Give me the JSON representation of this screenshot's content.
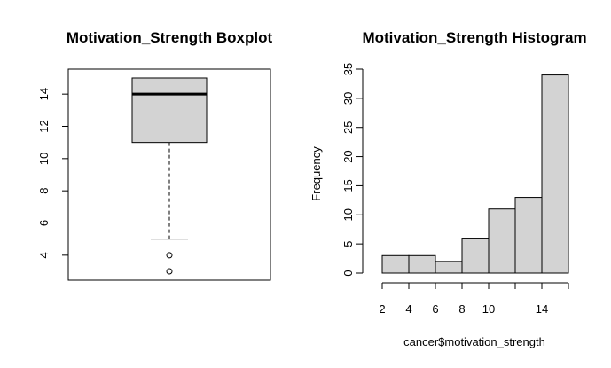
{
  "chart_data": [
    {
      "type": "boxplot",
      "title": "Motivation_Strength Boxplot",
      "ylim": [
        2.45,
        15.55
      ],
      "yticks": [
        4,
        6,
        8,
        10,
        12,
        14
      ],
      "box": {
        "q1": 11,
        "median": 14,
        "q3": 15,
        "whisker_low": 5,
        "whisker_high": 15
      },
      "outliers": [
        4,
        3
      ],
      "colors": {
        "box_fill": "#d3d3d3",
        "line": "#000000"
      }
    },
    {
      "type": "bar",
      "title": "Motivation_Strength Histogram",
      "xlabel": "cancer$motivation_strength",
      "ylabel": "Frequency",
      "xlim": [
        2,
        16
      ],
      "ylim": [
        0,
        35
      ],
      "xticks": [
        2,
        4,
        6,
        8,
        10,
        14
      ],
      "yticks": [
        0,
        5,
        10,
        15,
        20,
        25,
        30,
        35
      ],
      "bins": [
        {
          "from": 2,
          "to": 4,
          "count": 3
        },
        {
          "from": 4,
          "to": 6,
          "count": 3
        },
        {
          "from": 6,
          "to": 8,
          "count": 2
        },
        {
          "from": 8,
          "to": 10,
          "count": 6
        },
        {
          "from": 10,
          "to": 12,
          "count": 11
        },
        {
          "from": 12,
          "to": 14,
          "count": 13
        },
        {
          "from": 14,
          "to": 16,
          "count": 34
        }
      ],
      "colors": {
        "bar_fill": "#d3d3d3",
        "line": "#000000"
      }
    }
  ]
}
